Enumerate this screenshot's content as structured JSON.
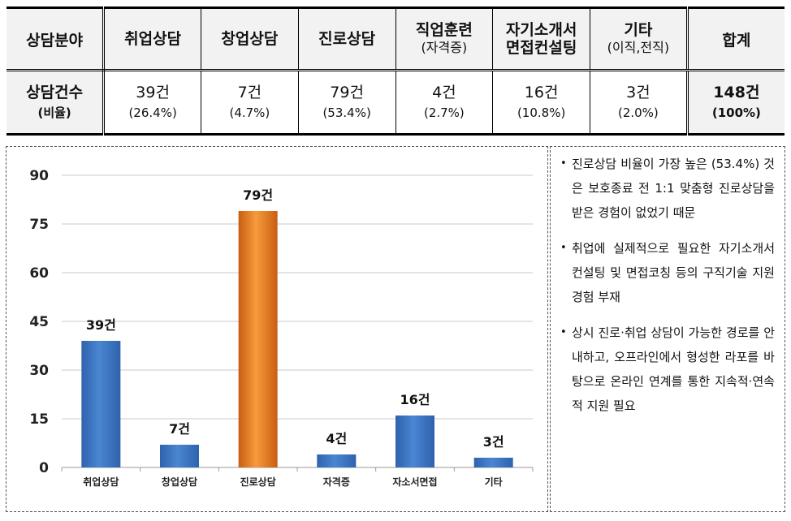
{
  "table": {
    "header": {
      "category_label": "상담분야",
      "columns": [
        {
          "line1": "취업상담",
          "line2": ""
        },
        {
          "line1": "창업상담",
          "line2": ""
        },
        {
          "line1": "진로상담",
          "line2": ""
        },
        {
          "line1": "직업훈련",
          "line2": "(자격증)"
        },
        {
          "line1": "자기소개서",
          "line2": "면접컨설팅"
        },
        {
          "line1": "기타",
          "line2": "(이직,전직)"
        }
      ],
      "total_label": "합계"
    },
    "row": {
      "label_line1": "상담건수",
      "label_line2": "(비율)",
      "cells": [
        {
          "count": "39건",
          "pct": "(26.4%)"
        },
        {
          "count": "7건",
          "pct": "(4.7%)"
        },
        {
          "count": "79건",
          "pct": "(53.4%)"
        },
        {
          "count": "4건",
          "pct": "(2.7%)"
        },
        {
          "count": "16건",
          "pct": "(10.8%)"
        },
        {
          "count": "3건",
          "pct": "(2.0%)"
        }
      ],
      "total": {
        "count": "148건",
        "pct": "(100%)"
      }
    }
  },
  "chart_data": {
    "type": "bar",
    "categories": [
      "취업상담",
      "창업상담",
      "진로상담",
      "자격증",
      "자소서면접",
      "기타"
    ],
    "values": [
      39,
      7,
      79,
      4,
      16,
      3
    ],
    "data_labels": [
      "39건",
      "7건",
      "79건",
      "4건",
      "16건",
      "3건"
    ],
    "ylim": [
      0,
      90
    ],
    "yticks": [
      0,
      15,
      30,
      45,
      60,
      75,
      90
    ],
    "grid": true,
    "colors": {
      "default": "#3f78c4",
      "highlight": "#e27a22",
      "highlight_index": 2,
      "grid": "#c8c8c8"
    }
  },
  "notes": [
    "진로상담 비율이 가장 높은 (53.4%) 것은 보호종료 전 1:1 맞춤형 진로상담을 받은 경험이 없었기 때문",
    "취업에 실제적으로 필요한 자기소개서 컨설팅 및 면접코칭 등의 구직기술 지원 경험 부재",
    "상시 진로·취업 상담이 가능한 경로를 안내하고, 오프라인에서 형성한 라포를 바탕으로 온라인 연계를 통한 지속적·연속적 지원 필요"
  ],
  "notes_bullet": "•"
}
